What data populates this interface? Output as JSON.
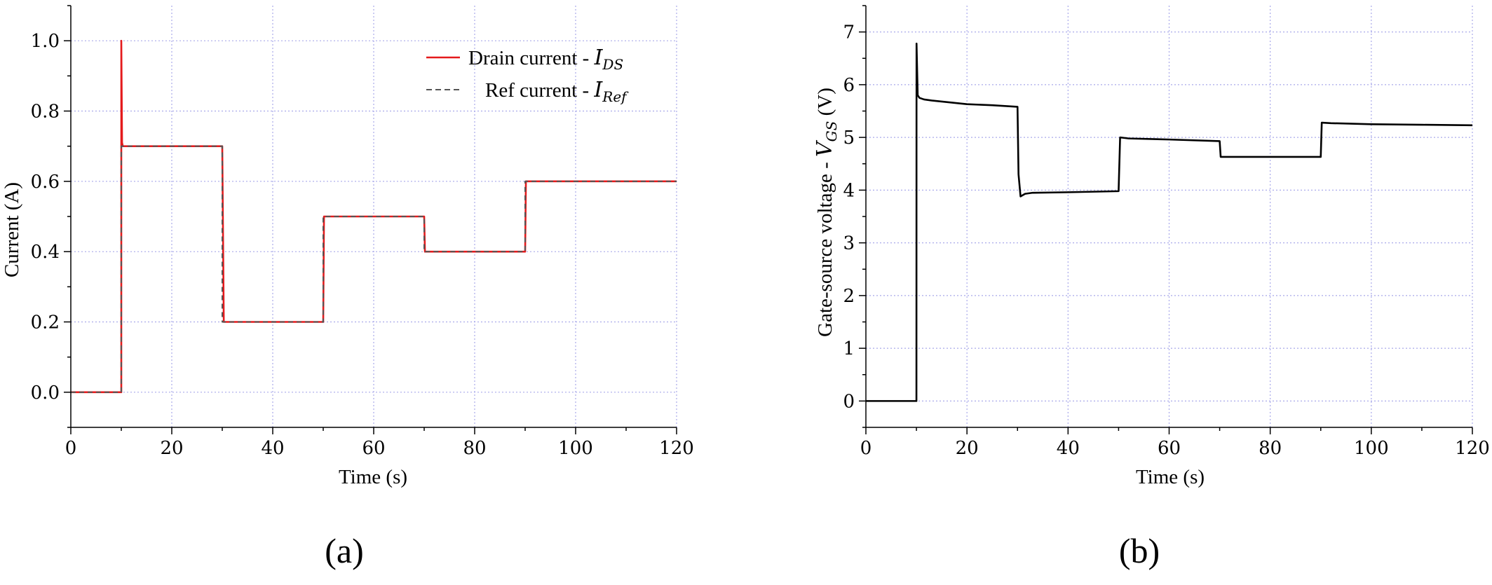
{
  "chart_data": [
    {
      "panel": "(a)",
      "type": "line",
      "xlabel": "Time (s)",
      "ylabel": "Current (A)",
      "xlim": [
        0,
        120
      ],
      "ylim": [
        -0.1,
        1.1
      ],
      "xticks": [
        0,
        20,
        40,
        60,
        80,
        100,
        120
      ],
      "xtick_labels": [
        "0",
        "20",
        "40",
        "60",
        "80",
        "100",
        "120"
      ],
      "yticks": [
        0.0,
        0.2,
        0.4,
        0.6,
        0.8,
        1.0
      ],
      "ytick_labels": [
        "0.0",
        "0.2",
        "0.4",
        "0.6",
        "0.8",
        "1.0"
      ],
      "grid": true,
      "legend_position": "top-right",
      "series": [
        {
          "name": "Drain current - I_DS",
          "legend_prefix": "Drain current - ",
          "legend_symbol": "I",
          "legend_subscript": "DS",
          "color": "#e41a1c",
          "style": "solid",
          "x": [
            0,
            10,
            10,
            10.15,
            10.3,
            30,
            30.3,
            50,
            50.15,
            70,
            70.15,
            90,
            90.15,
            120
          ],
          "y": [
            0,
            0,
            1.0,
            0.71,
            0.7,
            0.7,
            0.2,
            0.2,
            0.5,
            0.5,
            0.4,
            0.4,
            0.6,
            0.6
          ]
        },
        {
          "name": "Ref current - I_Ref",
          "legend_prefix": "Ref current - ",
          "legend_symbol": "I",
          "legend_subscript": "Ref",
          "color": "#555555",
          "style": "dashed",
          "x": [
            0,
            10,
            10,
            30,
            30,
            50,
            50,
            70,
            70,
            90,
            90,
            120
          ],
          "y": [
            0,
            0,
            0.7,
            0.7,
            0.2,
            0.2,
            0.5,
            0.5,
            0.4,
            0.4,
            0.6,
            0.6
          ]
        }
      ]
    },
    {
      "panel": "(b)",
      "type": "line",
      "xlabel": "Time (s)",
      "ylabel_prefix": "Gate-source voltage - ",
      "ylabel_symbol": "V",
      "ylabel_subscript": "GS",
      "ylabel_suffix": " (V)",
      "xlim": [
        0,
        120
      ],
      "ylim": [
        -0.5,
        7.5
      ],
      "xticks": [
        0,
        20,
        40,
        60,
        80,
        100,
        120
      ],
      "xtick_labels": [
        "0",
        "20",
        "40",
        "60",
        "80",
        "100",
        "120"
      ],
      "yticks": [
        0,
        1,
        2,
        3,
        4,
        5,
        6,
        7
      ],
      "ytick_labels": [
        "0",
        "1",
        "2",
        "3",
        "4",
        "5",
        "6",
        "7"
      ],
      "grid": true,
      "series": [
        {
          "name": "V_GS",
          "color": "#000000",
          "style": "solid",
          "x": [
            0,
            10,
            10.02,
            10.25,
            10.6,
            11.5,
            13,
            15,
            20,
            25,
            30,
            30.2,
            30.6,
            31.5,
            33,
            40,
            50,
            50.3,
            52,
            60,
            70,
            70.2,
            72,
            80,
            90,
            90.2,
            92,
            100,
            110,
            120
          ],
          "y": [
            0,
            0,
            6.78,
            5.8,
            5.75,
            5.72,
            5.7,
            5.68,
            5.63,
            5.61,
            5.58,
            4.3,
            3.88,
            3.93,
            3.95,
            3.96,
            3.98,
            5.0,
            4.98,
            4.96,
            4.93,
            4.63,
            4.63,
            4.63,
            4.63,
            5.28,
            5.27,
            5.25,
            5.24,
            5.23
          ]
        }
      ]
    }
  ]
}
